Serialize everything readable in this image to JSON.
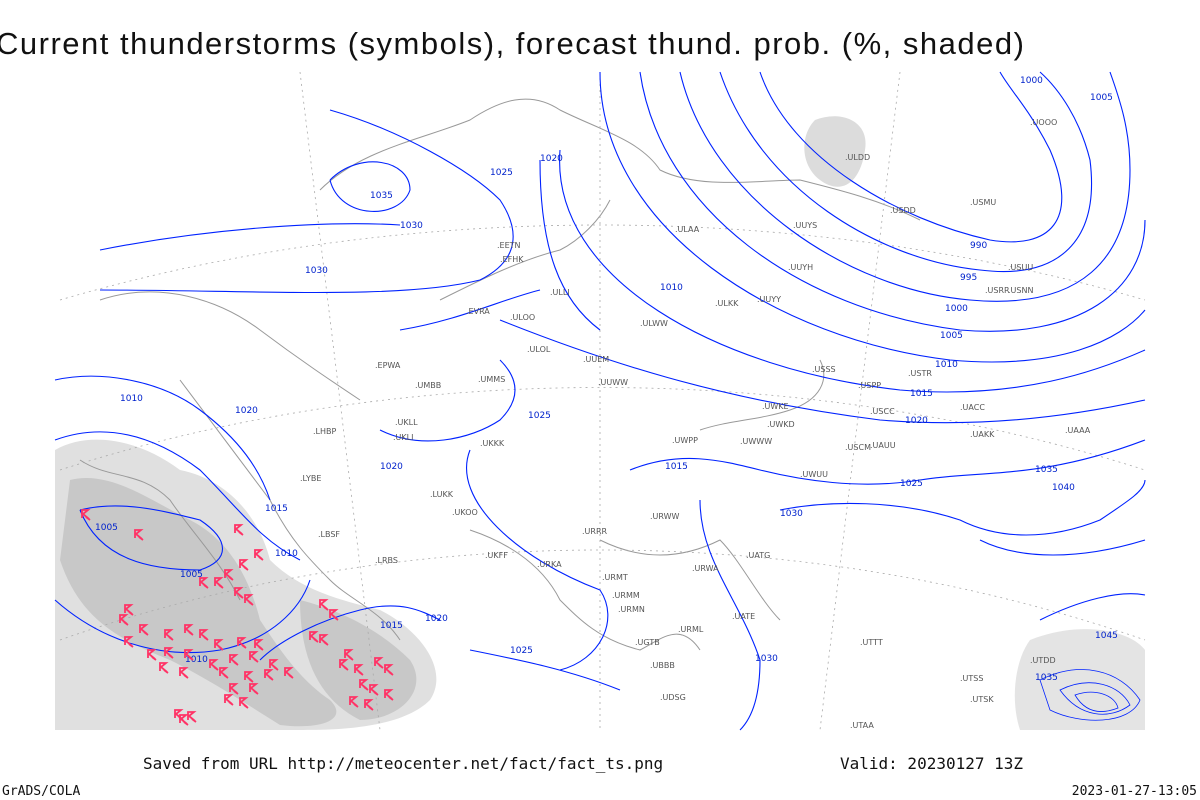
{
  "title": "Current thunderstorms (symbols), forecast thund. prob. (%, shaded)",
  "footer": {
    "saved": "Saved from URL http://meteocenter.net/fact/fact_ts.png",
    "valid": "Valid: 20230127 13Z",
    "software": "GrADS/COLA",
    "timestamp": "2023-01-27-13:05"
  },
  "colors": {
    "isobar": "#0022ff",
    "coast": "#999999",
    "shade_light": "#e0e0e0",
    "shade_dark": "#c4c4c4",
    "thunderstorm": "#ff3366"
  },
  "isobar_labels": [
    "1000",
    "1005",
    "990",
    "995",
    "1000",
    "1005",
    "1010",
    "1015",
    "1020",
    "1025",
    "1030",
    "1035",
    "1040",
    "1045",
    "1035",
    "1030",
    "1025",
    "1020",
    "1015",
    "1010",
    "1005",
    "1010",
    "1015",
    "1020",
    "1025",
    "1030",
    "1035",
    "1020",
    "1010",
    "1005",
    "1010",
    "1015",
    "1020",
    "1025",
    "1030"
  ],
  "stations": [
    "ULAA",
    "ULLI",
    "ULOO",
    "ULOL",
    "UUEM",
    "UUWW",
    "UUYY",
    "UUYH",
    "UUYS",
    "ULWW",
    "ULKK",
    "EFHK",
    "EETN",
    "EVRA",
    "UMMS",
    "UMBB",
    "EPWA",
    "UKLL",
    "UKLI",
    "UKKK",
    "LHBP",
    "LRBS",
    "LBSF",
    "LYBE",
    "LUKK",
    "UKOO",
    "UKFF",
    "URRR",
    "URKA",
    "URMT",
    "URMM",
    "URMN",
    "UGTB",
    "UBBB",
    "UDSG",
    "UWWW",
    "UWPP",
    "UWKE",
    "UWKD",
    "UWUU",
    "USSS",
    "USTR",
    "USCC",
    "USCM",
    "UAUU",
    "UACC",
    "UAKK",
    "UAAA",
    "UTAA",
    "UTTT",
    "UTSS",
    "UTSK",
    "UTDD",
    "USPP",
    "USNN",
    "USRR",
    "USUU",
    "USDD",
    "USMU",
    "ULDD",
    "UOOO",
    "URWW",
    "URWA",
    "UATG",
    "UATE",
    "URML"
  ]
}
